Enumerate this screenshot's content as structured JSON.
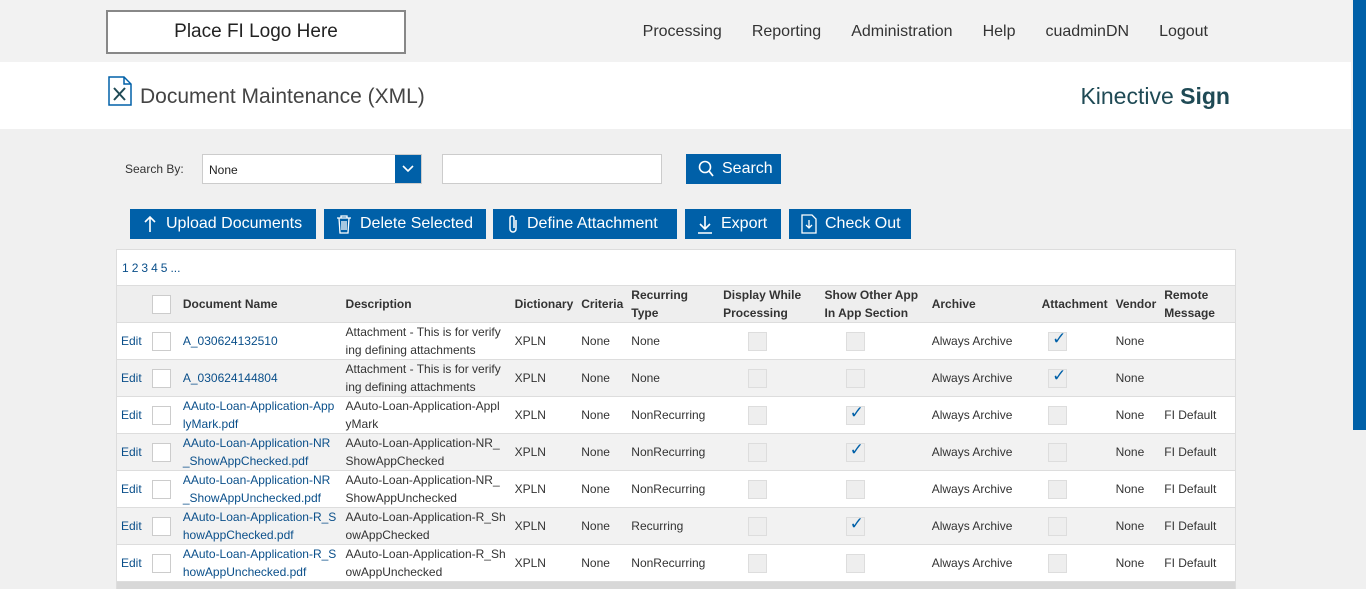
{
  "logo_text": "Place FI Logo Here",
  "nav": [
    "Processing",
    "Reporting",
    "Administration",
    "Help",
    "cuadminDN",
    "Logout"
  ],
  "page_title": "Document Maintenance (XML)",
  "brand": {
    "part1": "Kinective ",
    "part2": "Sign"
  },
  "search": {
    "label": "Search By:",
    "selected": "None",
    "input_value": "",
    "button_label": "Search"
  },
  "toolbar": {
    "upload": "Upload Documents",
    "delete": "Delete Selected",
    "define": "Define Attachment",
    "export": "Export",
    "checkout": "Check Out"
  },
  "pager": [
    "1",
    "2",
    "3",
    "4",
    "5",
    "..."
  ],
  "columns": {
    "name": "Document Name",
    "description": "Description",
    "dictionary": "Dictionary",
    "criteria": "Criteria",
    "recurring": "Recurring Type",
    "display_l1": "Display While",
    "display_l2": "Processing",
    "showother_l1": "Show Other App",
    "showother_l2": "In App Section",
    "archive": "Archive",
    "attachment": "Attachment",
    "vendor": "Vendor",
    "remote_l1": "Remote",
    "remote_l2": "Message"
  },
  "rows": [
    {
      "edit": "Edit",
      "name1": "A_030624132510",
      "name2": "",
      "desc1": "Attachment - This is for verify",
      "desc2": "ing defining attachments",
      "dictionary": "XPLN",
      "criteria": "None",
      "recurring": "None",
      "display": false,
      "show_other": false,
      "archive": "Always Archive",
      "attachment": true,
      "vendor": "None",
      "remote": ""
    },
    {
      "edit": "Edit",
      "name1": "A_030624144804",
      "name2": "",
      "desc1": "Attachment - This is for verify",
      "desc2": "ing defining attachments",
      "dictionary": "XPLN",
      "criteria": "None",
      "recurring": "None",
      "display": false,
      "show_other": false,
      "archive": "Always Archive",
      "attachment": true,
      "vendor": "None",
      "remote": ""
    },
    {
      "edit": "Edit",
      "name1": "AAuto-Loan-Application-App",
      "name2": "lyMark.pdf",
      "desc1": "AAuto-Loan-Application-Appl",
      "desc2": "yMark",
      "dictionary": "XPLN",
      "criteria": "None",
      "recurring": "NonRecurring",
      "display": false,
      "show_other": true,
      "archive": "Always Archive",
      "attachment": false,
      "vendor": "None",
      "remote": "FI Default"
    },
    {
      "edit": "Edit",
      "name1": "AAuto-Loan-Application-NR",
      "name2": "_ShowAppChecked.pdf",
      "desc1": "AAuto-Loan-Application-NR_",
      "desc2": "ShowAppChecked",
      "dictionary": "XPLN",
      "criteria": "None",
      "recurring": "NonRecurring",
      "display": false,
      "show_other": true,
      "archive": "Always Archive",
      "attachment": false,
      "vendor": "None",
      "remote": "FI Default"
    },
    {
      "edit": "Edit",
      "name1": "AAuto-Loan-Application-NR",
      "name2": "_ShowAppUnchecked.pdf",
      "desc1": "AAuto-Loan-Application-NR_",
      "desc2": "ShowAppUnchecked",
      "dictionary": "XPLN",
      "criteria": "None",
      "recurring": "NonRecurring",
      "display": false,
      "show_other": false,
      "archive": "Always Archive",
      "attachment": false,
      "vendor": "None",
      "remote": "FI Default"
    },
    {
      "edit": "Edit",
      "name1": "AAuto-Loan-Application-R_S",
      "name2": "howAppChecked.pdf",
      "desc1": "AAuto-Loan-Application-R_Sh",
      "desc2": "owAppChecked",
      "dictionary": "XPLN",
      "criteria": "None",
      "recurring": "Recurring",
      "display": false,
      "show_other": true,
      "archive": "Always Archive",
      "attachment": false,
      "vendor": "None",
      "remote": "FI Default"
    },
    {
      "edit": "Edit",
      "name1": "AAuto-Loan-Application-R_S",
      "name2": "howAppUnchecked.pdf",
      "desc1": "AAuto-Loan-Application-R_Sh",
      "desc2": "owAppUnchecked",
      "dictionary": "XPLN",
      "criteria": "None",
      "recurring": "NonRecurring",
      "display": false,
      "show_other": false,
      "archive": "Always Archive",
      "attachment": false,
      "vendor": "None",
      "remote": "FI Default"
    }
  ]
}
